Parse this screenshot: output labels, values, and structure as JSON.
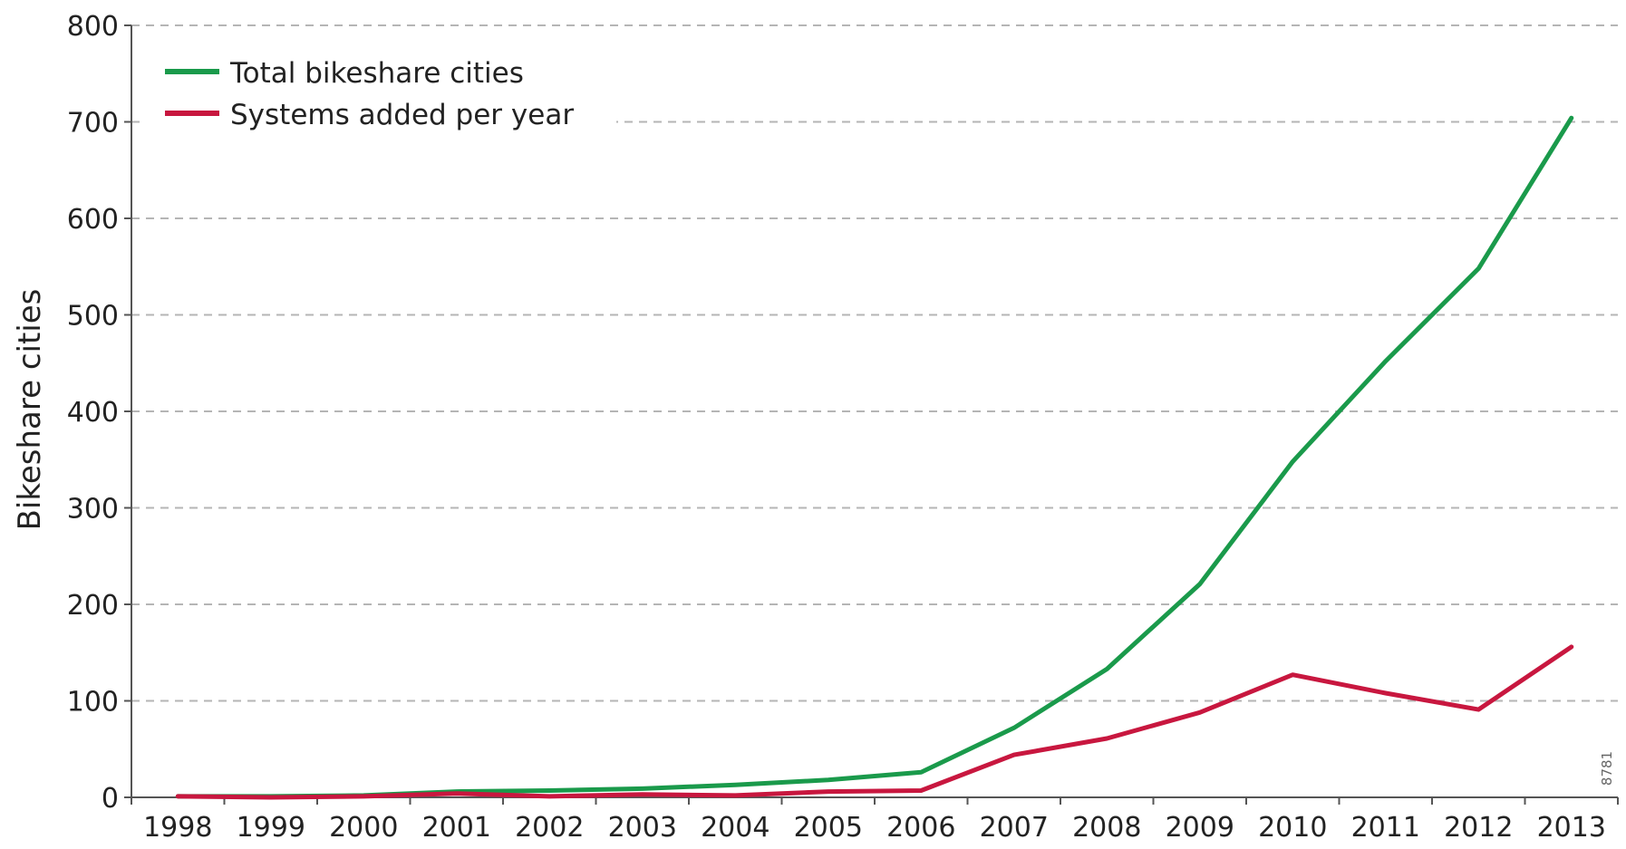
{
  "chart_data": {
    "type": "line",
    "x": [
      1998,
      1999,
      2000,
      2001,
      2002,
      2003,
      2004,
      2005,
      2006,
      2007,
      2008,
      2009,
      2010,
      2011,
      2012,
      2013
    ],
    "x_tick_labels": [
      "1998",
      "1999",
      "2000",
      "2001",
      "2002",
      "2003",
      "2004",
      "2005",
      "2006",
      "2007",
      "2008",
      "2009",
      "2010",
      "2011",
      "2012",
      "2013"
    ],
    "series": [
      {
        "name": "Total bikeshare cities",
        "color": "#1a9a4b",
        "values": [
          1,
          1,
          2,
          6,
          7,
          9,
          13,
          18,
          26,
          72,
          133,
          221,
          348,
          452,
          548,
          704
        ]
      },
      {
        "name": "Systems added per year",
        "color": "#c8173f",
        "values": [
          1,
          0,
          1,
          4,
          1,
          3,
          2,
          6,
          7,
          44,
          61,
          88,
          127,
          108,
          91,
          156
        ]
      }
    ],
    "ylabel": "Bikeshare cities",
    "xlabel": "",
    "ylim": [
      0,
      800
    ],
    "y_ticks": [
      0,
      100,
      200,
      300,
      400,
      500,
      600,
      700,
      800
    ],
    "y_tick_labels": [
      "0",
      "100",
      "200",
      "300",
      "400",
      "500",
      "600",
      "700",
      "800"
    ],
    "grid": "horizontal-dashed",
    "legend_position": "top-left",
    "watermark_text": "8781"
  }
}
